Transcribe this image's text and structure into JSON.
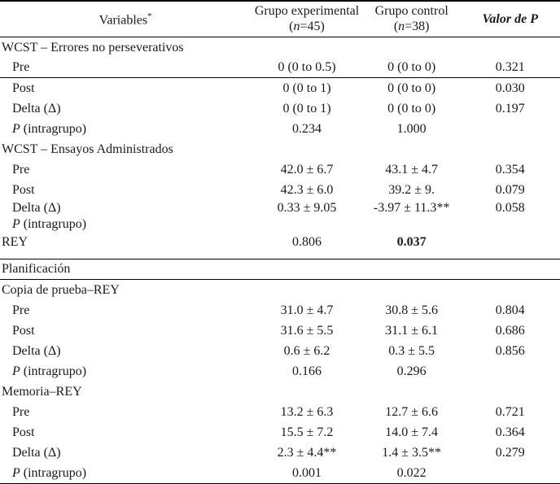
{
  "colors": {
    "text": "#1a1a1e",
    "rule": "#000000",
    "background": "#ffffff",
    "bold_pvalue": "#000000"
  },
  "header": {
    "col1": "Variables",
    "col1_sup": "*",
    "col2_title": "Grupo experimental",
    "col2_n_open": "(",
    "col2_n": "n",
    "col2_n_rest": "=45)",
    "col3_title": "Grupo control",
    "col3_n_open": "(",
    "col3_n": "n",
    "col3_n_rest": "=38)",
    "col4": "Valor de P"
  },
  "rows": [
    {
      "label_i": "",
      "label": "WCST – Errores no perseverativos",
      "exp": "",
      "ctl": "",
      "p": ""
    },
    {
      "label_i": "",
      "label": "Pre",
      "exp": "0 (0 to 0.5)",
      "ctl": "0 (0 to 0)",
      "p": "0.321"
    },
    {
      "label_i": "",
      "label": "Post",
      "exp": "0 (0 to 1)",
      "ctl": "0 (0 to 0)",
      "p": "0.030"
    },
    {
      "label_i": "",
      "label": "Delta (Δ)",
      "exp": "0 (0 to 1)",
      "ctl": "0 (0 to 0)",
      "p": "0.197"
    },
    {
      "label_i": "P",
      "label": " (intragrupo)",
      "exp": "0.234",
      "ctl": "1.000",
      "p": ""
    },
    {
      "label_i": "",
      "label": "WCST – Ensayos Administrados",
      "exp": "",
      "ctl": "",
      "p": ""
    },
    {
      "label_i": "",
      "label": "Pre",
      "exp": "42.0 ± 6.7",
      "ctl": "43.1 ± 4.7",
      "p": "0.354"
    },
    {
      "label_i": "",
      "label": "Post",
      "exp": "42.3 ± 6.0",
      "ctl": "39.2 ± 9.",
      "p": "0.079"
    },
    {
      "label_i": "",
      "label": "Delta (Δ)",
      "exp": "0.33 ± 9.05",
      "ctl": "-3.97 ± 11.3**",
      "p": "0.058"
    },
    {
      "label_i": "P",
      "label": " (intragrupo)",
      "exp": "",
      "ctl": "",
      "p": ""
    },
    {
      "label_i": "",
      "label": "REY",
      "exp": "0.806",
      "ctl": "0.037",
      "p": ""
    },
    {
      "label_i": "",
      "label": "Planificación",
      "exp": "",
      "ctl": "",
      "p": ""
    },
    {
      "label_i": "",
      "label": "Copia de prueba–REY",
      "exp": "",
      "ctl": "",
      "p": ""
    },
    {
      "label_i": "",
      "label": "Pre",
      "exp": "31.0 ± 4.7",
      "ctl": "30.8 ± 5.6",
      "p": "0.804"
    },
    {
      "label_i": "",
      "label": "Post",
      "exp": "31.6 ± 5.5",
      "ctl": "31.1 ± 6.1",
      "p": "0.686"
    },
    {
      "label_i": "",
      "label": "Delta (Δ)",
      "exp": "0.6 ± 6.2",
      "ctl": "0.3 ± 5.5",
      "p": "0.856"
    },
    {
      "label_i": "P",
      "label": " (intragrupo)",
      "exp": "0.166",
      "ctl": "0.296",
      "p": ""
    },
    {
      "label_i": "",
      "label": "Memoria–REY",
      "exp": "",
      "ctl": "",
      "p": ""
    },
    {
      "label_i": "",
      "label": "Pre",
      "exp": "13.2 ± 6.3",
      "ctl": "12.7 ± 6.6",
      "p": "0.721"
    },
    {
      "label_i": "",
      "label": "Post",
      "exp": "15.5 ± 7.2",
      "ctl": "14.0 ± 7.4",
      "p": "0.364"
    },
    {
      "label_i": "",
      "label": "Delta (Δ)",
      "exp": "2.3 ± 4.4**",
      "ctl": "1.4 ± 3.5**",
      "p": "0.279"
    },
    {
      "label_i": "P",
      "label": " (intragrupo)",
      "exp": "0.001",
      "ctl": "0.022",
      "p": ""
    }
  ]
}
